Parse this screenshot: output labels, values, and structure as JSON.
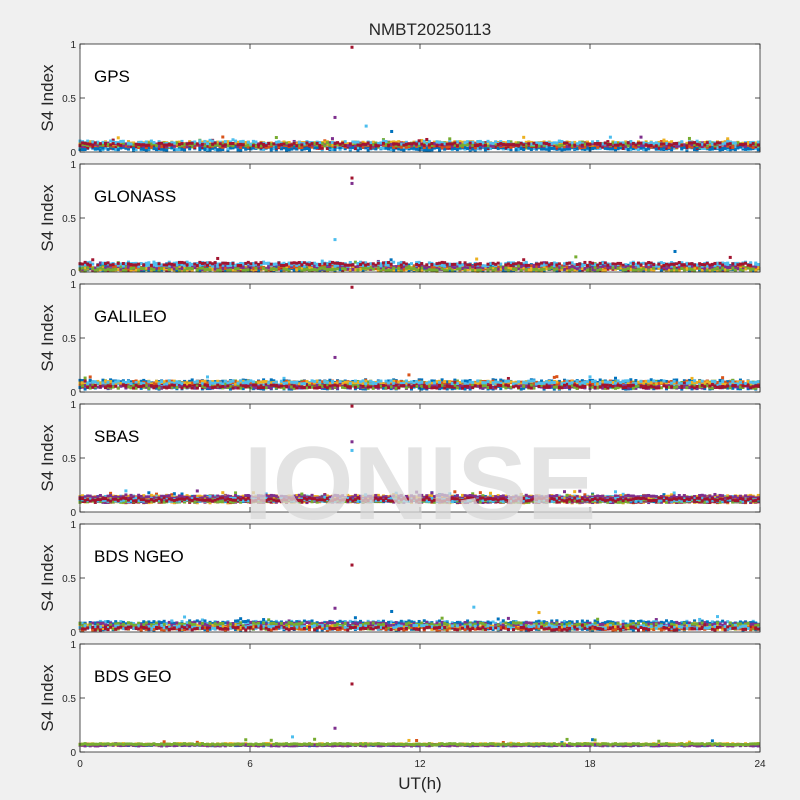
{
  "figure": {
    "title": "NMBT20250113",
    "xlabel": "UT(h)",
    "watermark": "IONISE",
    "background_color": "#f0f0f0",
    "axes_color": "#ffffff",
    "watermark_color": "#d9d9d9"
  },
  "series_colors": [
    "#0072bd",
    "#d95319",
    "#edb120",
    "#7e2f8e",
    "#77ac30",
    "#4dbeee",
    "#a2142f"
  ],
  "chart_data": [
    {
      "type": "scatter",
      "label": "GPS",
      "ylabel": "S4 Index",
      "xlim": [
        0,
        24
      ],
      "ylim": [
        0,
        1
      ],
      "x_ticks": [
        0,
        6,
        12,
        18,
        24
      ],
      "y_ticks": [
        0,
        0.5,
        1
      ],
      "grid": false,
      "baseline": 0.06,
      "spread": 0.03,
      "outliers": [
        {
          "x": 9.6,
          "y": 0.97
        },
        {
          "x": 9.0,
          "y": 0.32
        },
        {
          "x": 10.1,
          "y": 0.24
        },
        {
          "x": 11.0,
          "y": 0.19
        }
      ]
    },
    {
      "type": "scatter",
      "label": "GLONASS",
      "ylabel": "S4 Index",
      "xlim": [
        0,
        24
      ],
      "ylim": [
        0,
        1
      ],
      "x_ticks": [
        0,
        6,
        12,
        18,
        24
      ],
      "y_ticks": [
        0,
        0.5,
        1
      ],
      "grid": false,
      "baseline": 0.05,
      "spread": 0.03,
      "outliers": [
        {
          "x": 9.6,
          "y": 0.87
        },
        {
          "x": 9.6,
          "y": 0.82
        },
        {
          "x": 9.0,
          "y": 0.3
        },
        {
          "x": 21.0,
          "y": 0.19
        },
        {
          "x": 14.0,
          "y": 0.12
        },
        {
          "x": 17.5,
          "y": 0.14
        }
      ]
    },
    {
      "type": "scatter",
      "label": "GALILEO",
      "ylabel": "S4 Index",
      "xlim": [
        0,
        24
      ],
      "ylim": [
        0,
        1
      ],
      "x_ticks": [
        0,
        6,
        12,
        18,
        24
      ],
      "y_ticks": [
        0,
        0.5,
        1
      ],
      "grid": false,
      "baseline": 0.07,
      "spread": 0.03,
      "outliers": [
        {
          "x": 9.6,
          "y": 0.97
        },
        {
          "x": 9.0,
          "y": 0.32
        },
        {
          "x": 18.0,
          "y": 0.14
        }
      ]
    },
    {
      "type": "scatter",
      "label": "SBAS",
      "ylabel": "S4 Index",
      "xlim": [
        0,
        24
      ],
      "ylim": [
        0,
        1
      ],
      "x_ticks": [
        0,
        6,
        12,
        18,
        24
      ],
      "y_ticks": [
        0,
        0.5,
        1
      ],
      "grid": false,
      "baseline": 0.12,
      "spread": 0.03,
      "outliers": [
        {
          "x": 9.6,
          "y": 0.98
        },
        {
          "x": 9.6,
          "y": 0.65
        },
        {
          "x": 9.6,
          "y": 0.57
        }
      ]
    },
    {
      "type": "scatter",
      "label": "BDS NGEO",
      "ylabel": "S4 Index",
      "xlim": [
        0,
        24
      ],
      "ylim": [
        0,
        1
      ],
      "x_ticks": [
        0,
        6,
        12,
        18,
        24
      ],
      "y_ticks": [
        0,
        0.5,
        1
      ],
      "grid": false,
      "baseline": 0.06,
      "spread": 0.03,
      "outliers": [
        {
          "x": 9.6,
          "y": 0.62
        },
        {
          "x": 9.0,
          "y": 0.22
        },
        {
          "x": 13.9,
          "y": 0.23
        },
        {
          "x": 11.0,
          "y": 0.19
        },
        {
          "x": 16.2,
          "y": 0.18
        }
      ]
    },
    {
      "type": "scatter",
      "label": "BDS GEO",
      "ylabel": "S4 Index",
      "xlim": [
        0,
        24
      ],
      "ylim": [
        0,
        1
      ],
      "x_ticks": [
        0,
        6,
        12,
        18,
        24
      ],
      "y_ticks": [
        0,
        0.5,
        1
      ],
      "grid": false,
      "baseline": 0.07,
      "spread": 0.012,
      "outliers": [
        {
          "x": 9.6,
          "y": 0.63
        },
        {
          "x": 9.0,
          "y": 0.22
        },
        {
          "x": 7.5,
          "y": 0.14
        }
      ]
    }
  ]
}
